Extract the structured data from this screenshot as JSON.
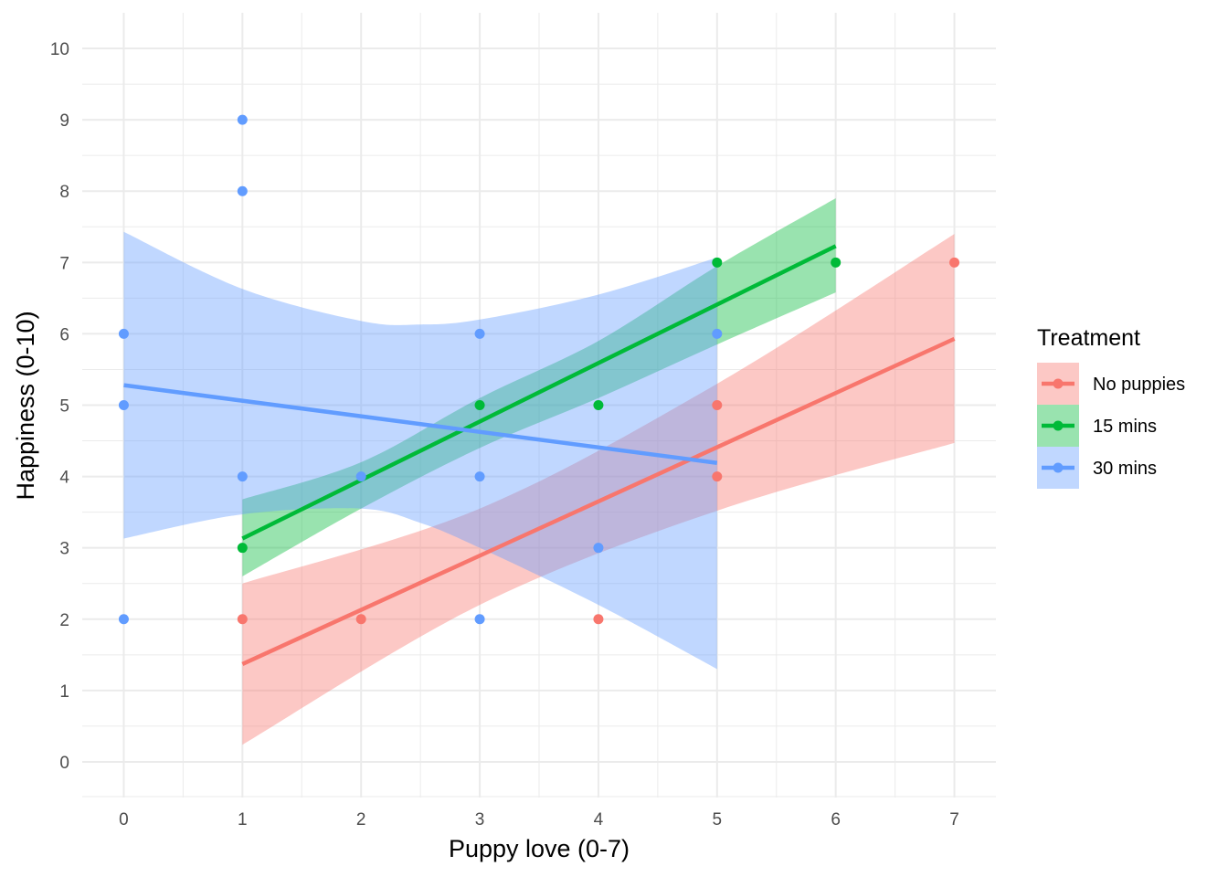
{
  "chart_data": {
    "type": "scatter",
    "xlabel": "Puppy love (0-7)",
    "ylabel": "Happiness (0-10)",
    "xlim": [
      -0.35,
      7.35
    ],
    "ylim": [
      -0.5,
      10.5
    ],
    "x_ticks": [
      "0",
      "1",
      "2",
      "3",
      "4",
      "5",
      "6",
      "7"
    ],
    "y_ticks": [
      "0",
      "1",
      "2",
      "3",
      "4",
      "5",
      "6",
      "7",
      "8",
      "9",
      "10"
    ],
    "grid": true,
    "legend": {
      "title": "Treatment",
      "position": "right"
    },
    "series": [
      {
        "name": "No puppies",
        "color": "#F8766D",
        "points": [
          [
            1,
            2
          ],
          [
            2,
            2
          ],
          [
            4,
            2
          ],
          [
            5,
            4
          ],
          [
            5,
            5
          ],
          [
            7,
            7
          ]
        ],
        "fit": {
          "x": [
            1,
            7
          ],
          "y": [
            1.37,
            5.93
          ]
        },
        "ci": {
          "x": [
            1,
            3,
            5,
            7
          ],
          "lower": [
            0.24,
            2.2,
            3.52,
            4.47
          ],
          "upper": [
            2.5,
            3.55,
            5.3,
            7.4
          ]
        }
      },
      {
        "name": "15 mins",
        "color": "#00BA38",
        "points": [
          [
            1,
            3
          ],
          [
            3,
            5
          ],
          [
            4,
            5
          ],
          [
            5,
            7
          ],
          [
            6,
            7
          ]
        ],
        "fit": {
          "x": [
            1,
            6
          ],
          "y": [
            3.13,
            7.23
          ]
        },
        "ci": {
          "x": [
            1,
            2,
            3,
            4,
            5,
            6
          ],
          "lower": [
            2.6,
            3.55,
            4.4,
            5.1,
            5.85,
            6.58
          ],
          "upper": [
            3.68,
            4.2,
            5.1,
            5.9,
            6.95,
            7.9
          ]
        }
      },
      {
        "name": "30 mins",
        "color": "#619CFF",
        "points": [
          [
            0,
            2
          ],
          [
            0,
            5
          ],
          [
            0,
            6
          ],
          [
            1,
            4
          ],
          [
            1,
            8
          ],
          [
            1,
            9
          ],
          [
            2,
            4
          ],
          [
            3,
            2
          ],
          [
            3,
            4
          ],
          [
            3,
            6
          ],
          [
            4,
            3
          ],
          [
            5,
            6
          ]
        ],
        "fit": {
          "x": [
            0,
            5
          ],
          "y": [
            5.28,
            4.19
          ]
        },
        "ci": {
          "x": [
            0,
            1,
            2,
            2.5,
            3,
            4,
            5
          ],
          "lower": [
            3.13,
            3.47,
            3.55,
            3.35,
            3.0,
            2.2,
            1.3
          ],
          "upper": [
            7.43,
            6.63,
            6.18,
            6.13,
            6.2,
            6.55,
            7.07
          ]
        }
      }
    ]
  }
}
